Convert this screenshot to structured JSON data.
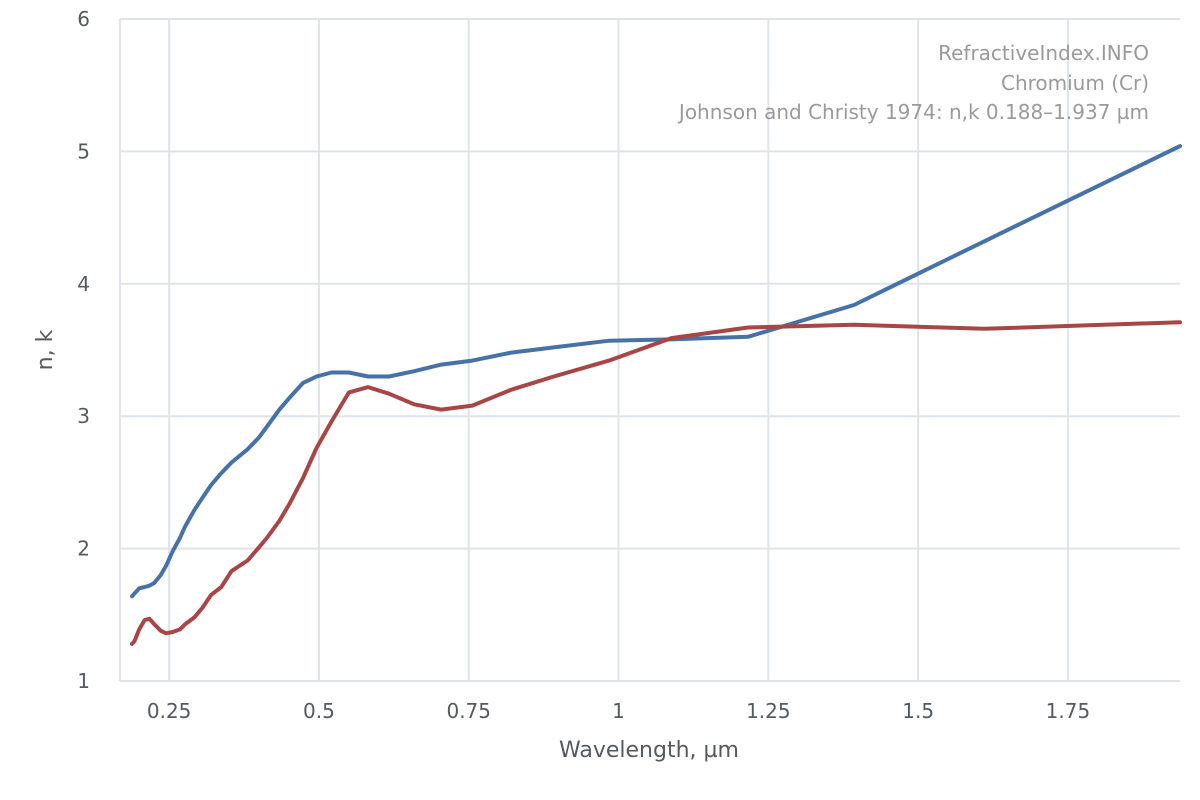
{
  "chart_data": {
    "type": "line",
    "title": "",
    "xlabel": "Wavelength, µm",
    "ylabel": "n, k",
    "xlim": [
      0.168,
      1.937
    ],
    "ylim": [
      1,
      6
    ],
    "x_ticks": [
      0.25,
      0.5,
      0.75,
      1,
      1.25,
      1.5,
      1.75
    ],
    "x_tick_labels": [
      "0.25",
      "0.5",
      "0.75",
      "1",
      "1.25",
      "1.5",
      "1.75"
    ],
    "y_ticks": [
      1,
      2,
      3,
      4,
      5,
      6
    ],
    "y_tick_labels": [
      "1",
      "2",
      "3",
      "4",
      "5",
      "6"
    ],
    "grid": true,
    "annotations": [
      "RefractiveIndex.INFO",
      "Chromium (Cr)",
      "Johnson and Christy 1974: n,k 0.188–1.937 µm"
    ],
    "colors": {
      "n": "#4672a8",
      "k": "#a84646",
      "grid": "#dfe3ea",
      "axis_text": "#555a60",
      "annotation": "#9a9a9a"
    },
    "series": [
      {
        "key": "n",
        "color": "#4672a8",
        "x": [
          0.188,
          0.192,
          0.2,
          0.209,
          0.217,
          0.225,
          0.236,
          0.245,
          0.256,
          0.268,
          0.277,
          0.292,
          0.305,
          0.32,
          0.337,
          0.354,
          0.381,
          0.4,
          0.413,
          0.434,
          0.451,
          0.473,
          0.496,
          0.521,
          0.55,
          0.582,
          0.617,
          0.659,
          0.704,
          0.756,
          0.821,
          0.892,
          0.984,
          1.088,
          1.216,
          1.393,
          1.61,
          1.937
        ],
        "y": [
          1.64,
          1.66,
          1.7,
          1.71,
          1.72,
          1.74,
          1.8,
          1.87,
          1.98,
          2.08,
          2.17,
          2.29,
          2.38,
          2.48,
          2.57,
          2.65,
          2.75,
          2.84,
          2.92,
          3.05,
          3.14,
          3.25,
          3.3,
          3.33,
          3.33,
          3.3,
          3.3,
          3.34,
          3.39,
          3.42,
          3.48,
          3.52,
          3.57,
          3.58,
          3.6,
          3.84,
          4.32,
          5.04
        ]
      },
      {
        "key": "k",
        "color": "#a84646",
        "x": [
          0.188,
          0.192,
          0.2,
          0.209,
          0.217,
          0.225,
          0.236,
          0.245,
          0.256,
          0.268,
          0.277,
          0.292,
          0.305,
          0.32,
          0.337,
          0.354,
          0.381,
          0.4,
          0.413,
          0.434,
          0.451,
          0.473,
          0.496,
          0.521,
          0.55,
          0.582,
          0.617,
          0.659,
          0.704,
          0.756,
          0.821,
          0.892,
          0.984,
          1.088,
          1.216,
          1.393,
          1.61,
          1.937
        ],
        "y": [
          1.28,
          1.3,
          1.39,
          1.46,
          1.47,
          1.43,
          1.38,
          1.36,
          1.37,
          1.39,
          1.43,
          1.48,
          1.55,
          1.65,
          1.71,
          1.83,
          1.91,
          2.01,
          2.08,
          2.21,
          2.34,
          2.53,
          2.76,
          2.96,
          3.18,
          3.22,
          3.17,
          3.09,
          3.05,
          3.08,
          3.2,
          3.3,
          3.42,
          3.59,
          3.67,
          3.69,
          3.66,
          3.71
        ]
      }
    ]
  }
}
